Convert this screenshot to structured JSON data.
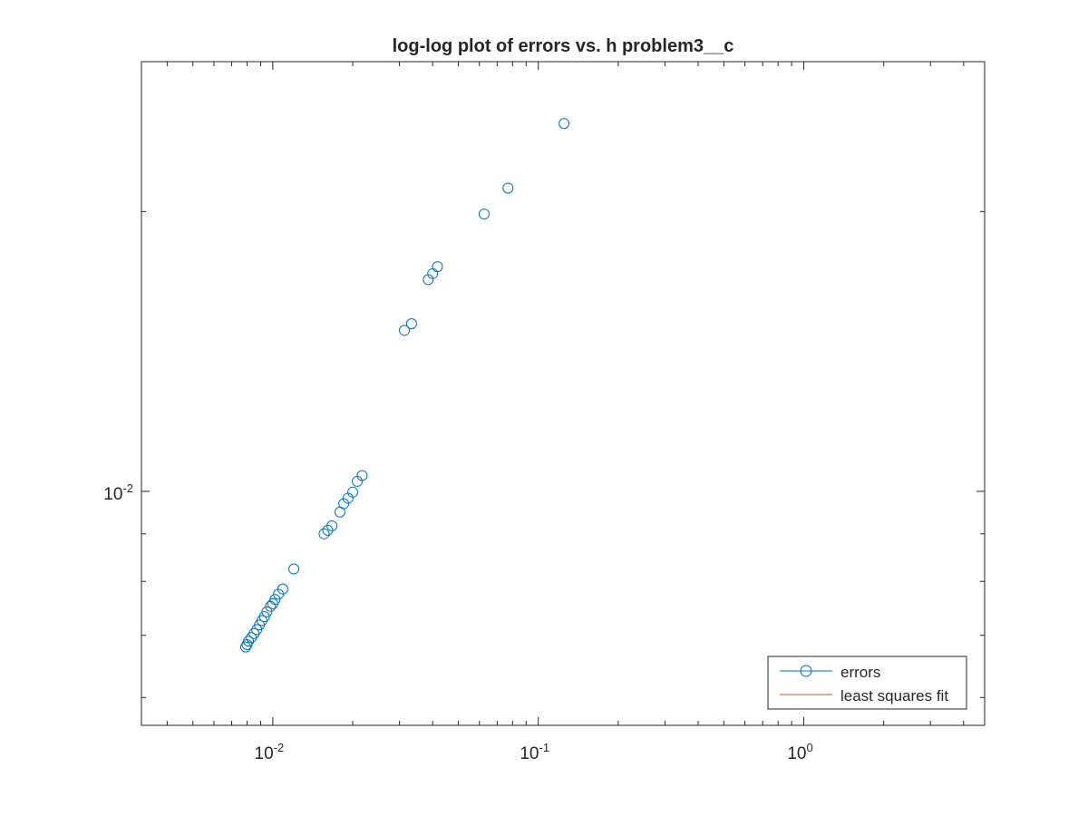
{
  "chart_data": {
    "type": "scatter",
    "title": "log-log plot of errors vs. h problem3__c",
    "xlabel": "",
    "ylabel": "",
    "xscale": "log",
    "yscale": "log",
    "xlim": [
      0.0032,
      4.8
    ],
    "ylim": [
      0.0056,
      0.029
    ],
    "x_ticks": [
      {
        "value": 0.01,
        "base": "10",
        "exp": "-2"
      },
      {
        "value": 0.1,
        "base": "10",
        "exp": "-1"
      },
      {
        "value": 1,
        "base": "10",
        "exp": "0"
      }
    ],
    "y_ticks": [
      {
        "value": 0.01,
        "base": "10",
        "exp": "-2"
      }
    ],
    "grid": false,
    "legend_position": "bottom-right",
    "colors": {
      "errors": "#0072BD",
      "fit": "#D95319",
      "axes": "#262626"
    },
    "series": [
      {
        "name": "errors",
        "marker": "circle",
        "points": [
          {
            "x": 0.125,
            "y": 0.02488
          },
          {
            "x": 0.0769,
            "y": 0.0212
          },
          {
            "x": 0.0625,
            "y": 0.01988
          },
          {
            "x": 0.0417,
            "y": 0.01745
          },
          {
            "x": 0.04,
            "y": 0.01715
          },
          {
            "x": 0.0385,
            "y": 0.0169
          },
          {
            "x": 0.0333,
            "y": 0.01515
          },
          {
            "x": 0.0313,
            "y": 0.0149
          },
          {
            "x": 0.0217,
            "y": 0.0104
          },
          {
            "x": 0.0208,
            "y": 0.01025
          },
          {
            "x": 0.02,
            "y": 0.00998
          },
          {
            "x": 0.0192,
            "y": 0.00983
          },
          {
            "x": 0.0185,
            "y": 0.0097
          },
          {
            "x": 0.0179,
            "y": 0.0095
          },
          {
            "x": 0.0167,
            "y": 0.00918
          },
          {
            "x": 0.0161,
            "y": 0.00908
          },
          {
            "x": 0.0156,
            "y": 0.009
          },
          {
            "x": 0.012,
            "y": 0.00825
          },
          {
            "x": 0.0109,
            "y": 0.00785
          },
          {
            "x": 0.0105,
            "y": 0.00775
          },
          {
            "x": 0.0102,
            "y": 0.00765
          },
          {
            "x": 0.01,
            "y": 0.00757
          },
          {
            "x": 0.0098,
            "y": 0.00752
          },
          {
            "x": 0.0095,
            "y": 0.00742
          },
          {
            "x": 0.0093,
            "y": 0.00733
          },
          {
            "x": 0.0091,
            "y": 0.00726
          },
          {
            "x": 0.0089,
            "y": 0.00718
          },
          {
            "x": 0.0087,
            "y": 0.0071
          },
          {
            "x": 0.0085,
            "y": 0.00703
          },
          {
            "x": 0.0083,
            "y": 0.00696
          },
          {
            "x": 0.0081,
            "y": 0.0069
          },
          {
            "x": 0.008,
            "y": 0.00684
          },
          {
            "x": 0.0079,
            "y": 0.0068
          }
        ]
      },
      {
        "name": "least squares fit",
        "line": "solid",
        "points": []
      }
    ]
  }
}
